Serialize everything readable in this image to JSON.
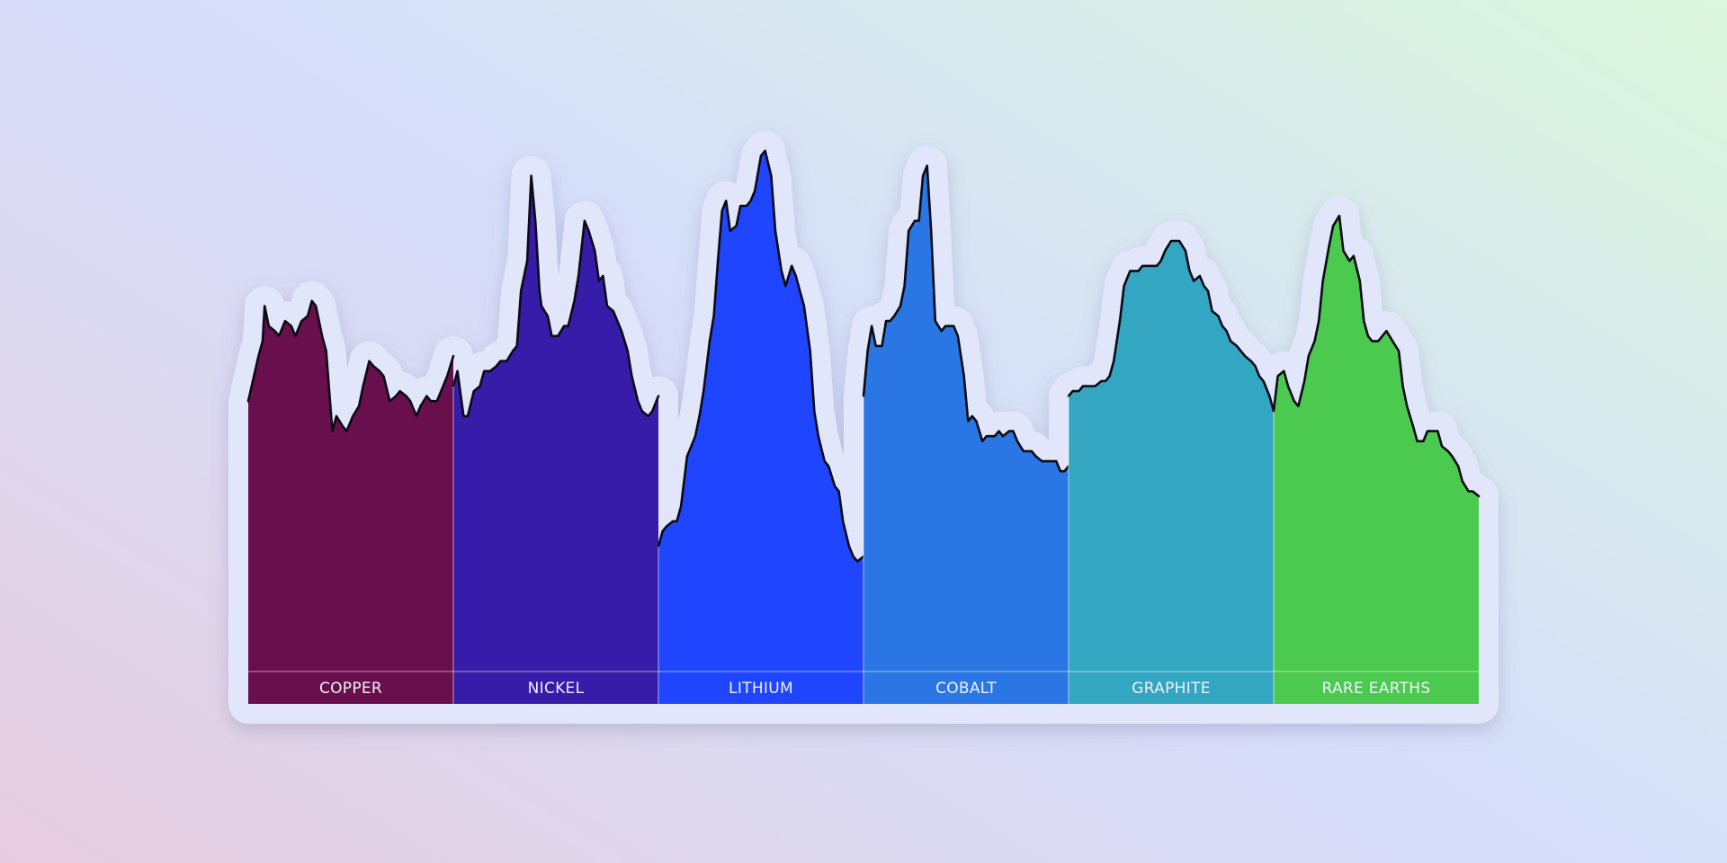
{
  "chart_data": {
    "type": "area",
    "title": "",
    "xlabel": "",
    "ylabel": "",
    "x_range": [
      0,
      100
    ],
    "ylim": [
      0,
      100
    ],
    "grid": false,
    "legend": "none",
    "series": [
      {
        "label": "COPPER",
        "color": "#6a0f4d",
        "x": [
          0,
          5,
          7,
          8,
          10,
          13,
          15,
          18,
          21,
          23,
          26,
          29,
          31,
          33,
          36,
          38,
          41,
          43,
          46,
          48,
          51,
          54,
          56,
          59,
          61,
          64,
          66,
          69,
          72,
          74,
          77,
          79,
          82,
          84,
          87,
          89,
          92,
          94,
          97,
          100
        ],
        "values": [
          54,
          63,
          66,
          73,
          69,
          68,
          67,
          70,
          69,
          67,
          70,
          71,
          74,
          73,
          67,
          64,
          48,
          51,
          49,
          48,
          51,
          53,
          57,
          62,
          61,
          60,
          59,
          54,
          55,
          56,
          55,
          54,
          51,
          53,
          55,
          54,
          54,
          56,
          59,
          63
        ]
      },
      {
        "label": "NICKEL",
        "color": "#371ba9",
        "x": [
          0,
          2,
          5,
          7,
          10,
          13,
          15,
          18,
          21,
          23,
          26,
          29,
          31,
          33,
          36,
          38,
          40,
          42,
          43,
          46,
          48,
          51,
          54,
          56,
          59,
          61,
          64,
          66,
          69,
          71,
          73,
          75,
          78,
          80,
          82,
          85,
          87,
          90,
          92,
          95,
          97,
          100
        ],
        "values": [
          57,
          60,
          51,
          51,
          56,
          57,
          60,
          60,
          61,
          62,
          62,
          64,
          65,
          76,
          82,
          99,
          90,
          76,
          73,
          71,
          67,
          67,
          69,
          69,
          74,
          79,
          90,
          88,
          84,
          78,
          79,
          73,
          72,
          70,
          68,
          64,
          59,
          54,
          52,
          51,
          52,
          55
        ]
      },
      {
        "label": "LITHIUM",
        "color": "#1f45ff",
        "x": [
          0,
          2,
          4,
          7,
          9,
          11,
          14,
          16,
          18,
          20,
          22,
          25,
          27,
          29,
          31,
          33,
          35,
          38,
          40,
          43,
          45,
          47,
          50,
          52,
          55,
          57,
          60,
          62,
          65,
          67,
          69,
          71,
          74,
          76,
          78,
          81,
          83,
          86,
          88,
          90,
          93,
          95,
          97,
          100
        ],
        "values": [
          25,
          28,
          29,
          30,
          30,
          33,
          43,
          45,
          47,
          51,
          56,
          66,
          71,
          82,
          92,
          94,
          88,
          89,
          93,
          93,
          94,
          96,
          103,
          104,
          99,
          88,
          80,
          77,
          81,
          79,
          76,
          73,
          64,
          52,
          47,
          42,
          41,
          37,
          36,
          30,
          25,
          23,
          22,
          23
        ]
      },
      {
        "label": "COBALT",
        "color": "#2a76e4",
        "x": [
          0,
          2,
          4,
          6,
          9,
          11,
          13,
          15,
          18,
          20,
          22,
          25,
          27,
          29,
          31,
          33,
          35,
          38,
          40,
          42,
          44,
          46,
          49,
          51,
          53,
          55,
          58,
          60,
          62,
          64,
          66,
          68,
          71,
          73,
          75,
          78,
          80,
          82,
          84,
          87,
          89,
          91,
          94,
          96,
          98,
          100
        ],
        "values": [
          55,
          64,
          69,
          65,
          65,
          70,
          70,
          71,
          73,
          77,
          88,
          90,
          90,
          99,
          101,
          88,
          70,
          68,
          69,
          69,
          69,
          67,
          59,
          50,
          51,
          50,
          46,
          47,
          47,
          47,
          48,
          47,
          48,
          48,
          46,
          44,
          44,
          44,
          43,
          42,
          42,
          42,
          42,
          40,
          40,
          41
        ]
      },
      {
        "label": "GRAPHITE",
        "color": "#33a6c1",
        "x": [
          0,
          2,
          5,
          7,
          9,
          11,
          13,
          16,
          18,
          20,
          22,
          25,
          27,
          30,
          32,
          34,
          36,
          38,
          41,
          43,
          45,
          47,
          50,
          52,
          54,
          57,
          59,
          61,
          64,
          66,
          68,
          70,
          73,
          75,
          77,
          79,
          82,
          84,
          86,
          89,
          91,
          93,
          95,
          98,
          100
        ],
        "values": [
          55,
          56,
          56,
          57,
          57,
          57,
          57,
          58,
          58,
          59,
          62,
          70,
          77,
          80,
          80,
          80,
          81,
          81,
          81,
          81,
          82,
          84,
          86,
          86,
          86,
          84,
          80,
          78,
          79,
          77,
          76,
          72,
          71,
          69,
          68,
          66,
          65,
          64,
          63,
          62,
          61,
          59,
          58,
          55,
          52
        ]
      },
      {
        "label": "RARE EARTHS",
        "color": "#4cca4f",
        "x": [
          0,
          2,
          5,
          7,
          10,
          12,
          15,
          17,
          20,
          22,
          24,
          27,
          29,
          32,
          34,
          37,
          39,
          42,
          44,
          46,
          48,
          51,
          53,
          55,
          58,
          61,
          63,
          65,
          68,
          70,
          73,
          75,
          78,
          80,
          82,
          85,
          87,
          90,
          92,
          95,
          97,
          100
        ],
        "values": [
          52,
          59,
          60,
          57,
          54,
          53,
          58,
          63,
          66,
          70,
          78,
          85,
          89,
          91,
          84,
          82,
          83,
          78,
          70,
          67,
          66,
          66,
          67,
          68,
          66,
          64,
          57,
          53,
          49,
          46,
          46,
          48,
          48,
          48,
          45,
          44,
          43,
          41,
          38,
          36,
          36,
          35
        ]
      }
    ]
  }
}
